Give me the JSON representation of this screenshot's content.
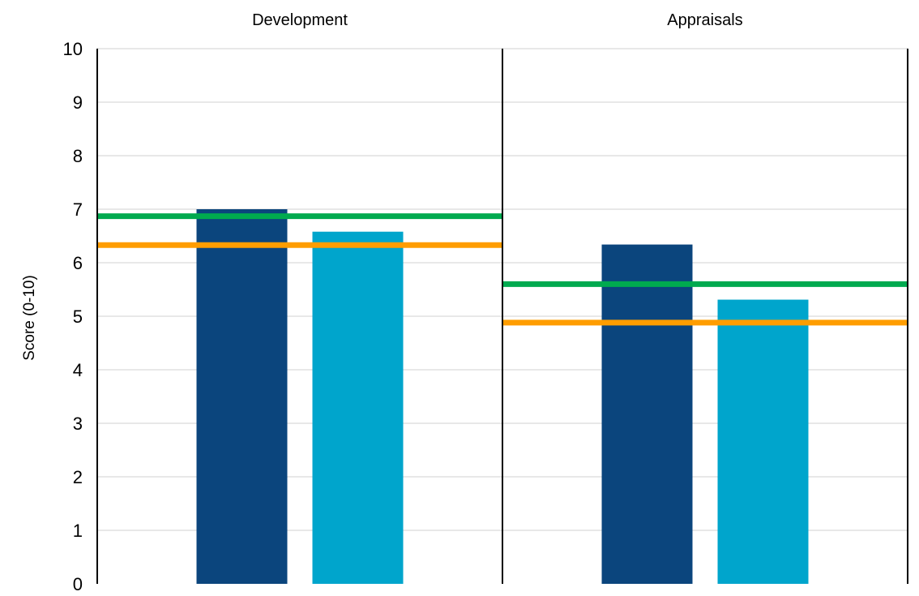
{
  "chart_data": {
    "type": "bar",
    "ylabel": "Score (0-10)",
    "ylim": [
      0,
      10
    ],
    "yticks": [
      0,
      1,
      2,
      3,
      4,
      5,
      6,
      7,
      8,
      9,
      10
    ],
    "grid": true,
    "panels": [
      {
        "title": "Development",
        "bars": [
          7.0,
          6.58
        ],
        "reference_lines": [
          6.87,
          6.33
        ]
      },
      {
        "title": "Appraisals",
        "bars": [
          6.34,
          5.31
        ],
        "reference_lines": [
          5.6,
          4.88
        ]
      }
    ],
    "colors": {
      "bars": [
        "#0b457d",
        "#00a5cc"
      ],
      "reference_lines": [
        "#00aa4f",
        "#ff9d00"
      ],
      "grid": "#d9d9d9",
      "axis": "#000000"
    }
  }
}
